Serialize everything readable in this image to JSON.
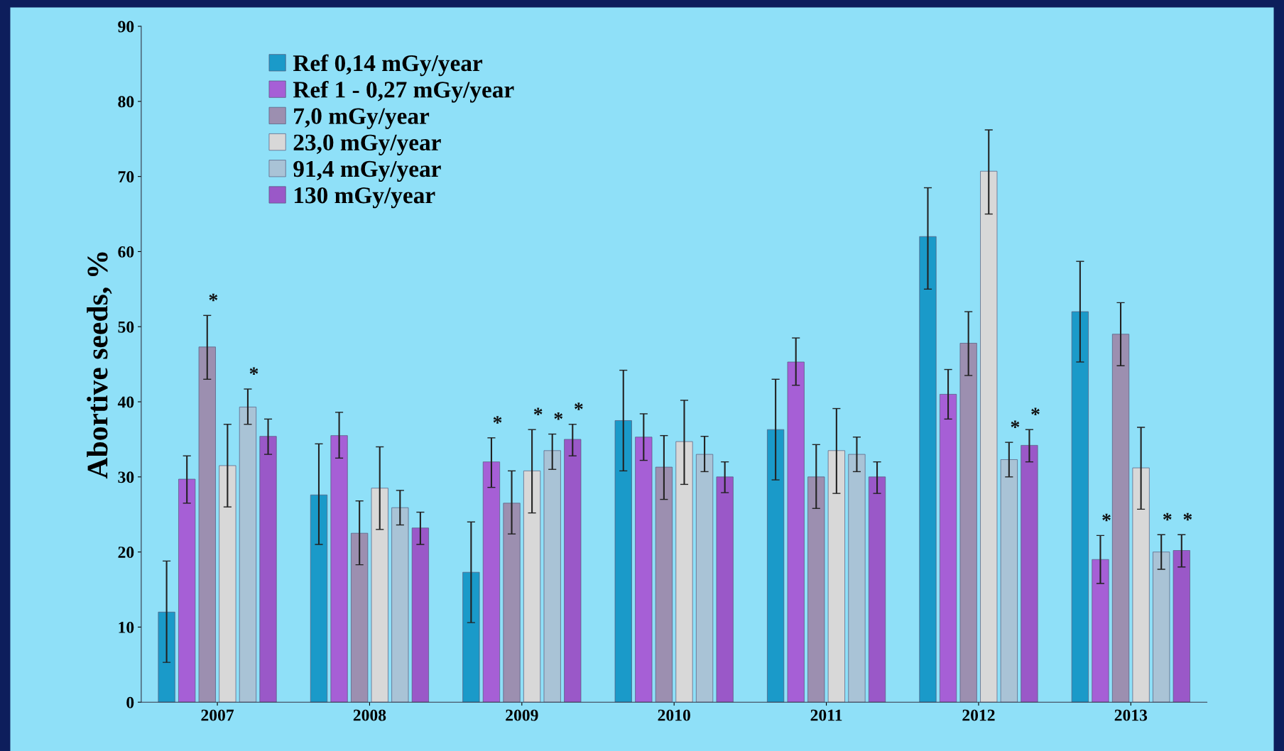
{
  "chart_data": {
    "type": "bar",
    "ylabel": "Abortive seeds, %",
    "categories": [
      "2007",
      "2008",
      "2009",
      "2010",
      "2011",
      "2012",
      "2013"
    ],
    "ylim": [
      0,
      90
    ],
    "yticks": [
      0,
      10,
      20,
      30,
      40,
      50,
      60,
      70,
      80,
      90
    ],
    "grid": false,
    "legend": "top left",
    "series": [
      {
        "name": "Ref 0,14 mGy/year",
        "color": "#1a9ac9",
        "values": [
          12.0,
          27.6,
          17.3,
          37.5,
          36.3,
          62.0,
          52.0
        ],
        "errors": [
          [
            5.3,
            18.8
          ],
          [
            21.0,
            34.4
          ],
          [
            10.6,
            24.0
          ],
          [
            30.8,
            44.2
          ],
          [
            29.6,
            43.0
          ],
          [
            55.0,
            68.5
          ],
          [
            45.3,
            58.7
          ]
        ]
      },
      {
        "name": "Ref 1 - 0,27 mGy/year",
        "color": "#a65fd6",
        "values": [
          29.7,
          35.5,
          32.0,
          35.3,
          45.3,
          41.0,
          19.0
        ],
        "errors": [
          [
            26.5,
            32.8
          ],
          [
            32.5,
            38.6
          ],
          [
            28.6,
            35.2
          ],
          [
            32.2,
            38.4
          ],
          [
            42.2,
            48.5
          ],
          [
            37.7,
            44.3
          ],
          [
            15.8,
            22.2
          ]
        ],
        "value_labels": [
          null,
          null,
          "*",
          null,
          null,
          null,
          "*"
        ]
      },
      {
        "name": "7,0 mGy/year",
        "color": "#9c8fb0",
        "values": [
          47.3,
          22.5,
          26.5,
          31.3,
          30.0,
          47.8,
          49.0
        ],
        "errors": [
          [
            43.0,
            51.5
          ],
          [
            18.3,
            26.8
          ],
          [
            22.4,
            30.8
          ],
          [
            27.0,
            35.5
          ],
          [
            25.8,
            34.3
          ],
          [
            43.5,
            52.0
          ],
          [
            44.8,
            53.2
          ]
        ],
        "value_labels": [
          "*",
          null,
          null,
          null,
          null,
          null,
          null
        ]
      },
      {
        "name": "23,0 mGy/year",
        "color": "#d8d8d8",
        "values": [
          31.5,
          28.5,
          30.8,
          34.7,
          33.5,
          70.7,
          31.2
        ],
        "errors": [
          [
            26.0,
            37.0
          ],
          [
            23.0,
            34.0
          ],
          [
            25.2,
            36.3
          ],
          [
            29.0,
            40.2
          ],
          [
            27.8,
            39.1
          ],
          [
            65.0,
            76.2
          ],
          [
            25.7,
            36.6
          ]
        ],
        "value_labels": [
          null,
          null,
          "*",
          null,
          null,
          null,
          null
        ]
      },
      {
        "name": "91,4 mGy/year",
        "color": "#a9c3d6",
        "values": [
          39.3,
          25.9,
          33.5,
          33.0,
          33.0,
          32.3,
          20.0
        ],
        "errors": [
          [
            37.0,
            41.7
          ],
          [
            23.6,
            28.2
          ],
          [
            31.0,
            35.7
          ],
          [
            30.7,
            35.4
          ],
          [
            30.7,
            35.3
          ],
          [
            30.0,
            34.6
          ],
          [
            17.7,
            22.3
          ]
        ],
        "value_labels": [
          "*",
          null,
          "*",
          null,
          null,
          "*",
          "*"
        ]
      },
      {
        "name": "130 mGy/year",
        "color": "#9a58c8",
        "values": [
          35.4,
          23.2,
          35.0,
          30.0,
          30.0,
          34.2,
          20.2
        ],
        "errors": [
          [
            33.0,
            37.7
          ],
          [
            21.0,
            25.3
          ],
          [
            32.8,
            37.0
          ],
          [
            27.9,
            32.0
          ],
          [
            27.8,
            32.0
          ],
          [
            32.0,
            36.3
          ],
          [
            18.0,
            22.3
          ]
        ],
        "value_labels": [
          null,
          null,
          "*",
          null,
          null,
          "*",
          "*"
        ]
      }
    ]
  }
}
